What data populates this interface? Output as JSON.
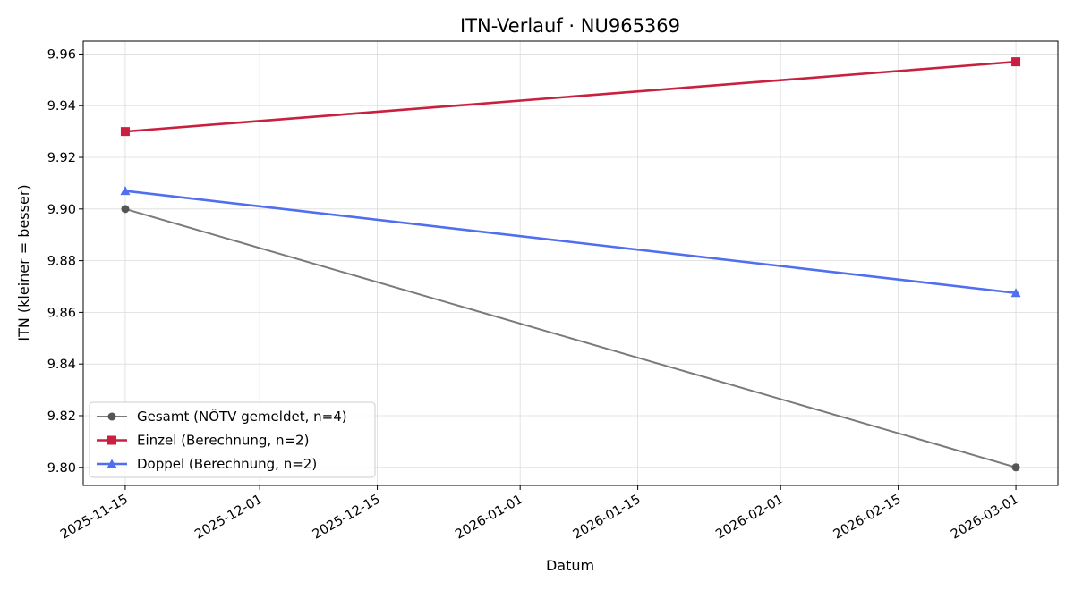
{
  "chart_data": {
    "type": "line",
    "title": "ITN-Verlauf · NU965369",
    "xlabel": "Datum",
    "ylabel": "ITN  (kleiner = besser)",
    "x_ticks": [
      "2025-11-15",
      "2025-12-01",
      "2025-12-15",
      "2026-01-01",
      "2026-01-15",
      "2026-02-01",
      "2026-02-15",
      "2026-03-01"
    ],
    "y_ticks": [
      "9.80",
      "9.82",
      "9.84",
      "9.86",
      "9.88",
      "9.90",
      "9.92",
      "9.94",
      "9.96"
    ],
    "xlim": [
      "2025-11-10",
      "2026-03-06"
    ],
    "ylim": [
      9.793,
      9.965
    ],
    "grid": true,
    "legend_position": "lower-left",
    "series": [
      {
        "name": "Gesamt (NÖTV gemeldet, n=4)",
        "color": "#555555",
        "marker": "circle",
        "x": [
          "2025-11-15",
          "2026-03-01"
        ],
        "y": [
          9.9,
          9.8
        ]
      },
      {
        "name": "Einzel (Berechnung, n=2)",
        "color": "#c8203e",
        "marker": "square",
        "x": [
          "2025-11-15",
          "2026-03-01"
        ],
        "y": [
          9.93,
          9.957
        ]
      },
      {
        "name": "Doppel (Berechnung, n=2)",
        "color": "#4f6ef0",
        "marker": "triangle",
        "x": [
          "2025-11-15",
          "2026-03-01"
        ],
        "y": [
          9.907,
          9.8675
        ]
      }
    ]
  }
}
